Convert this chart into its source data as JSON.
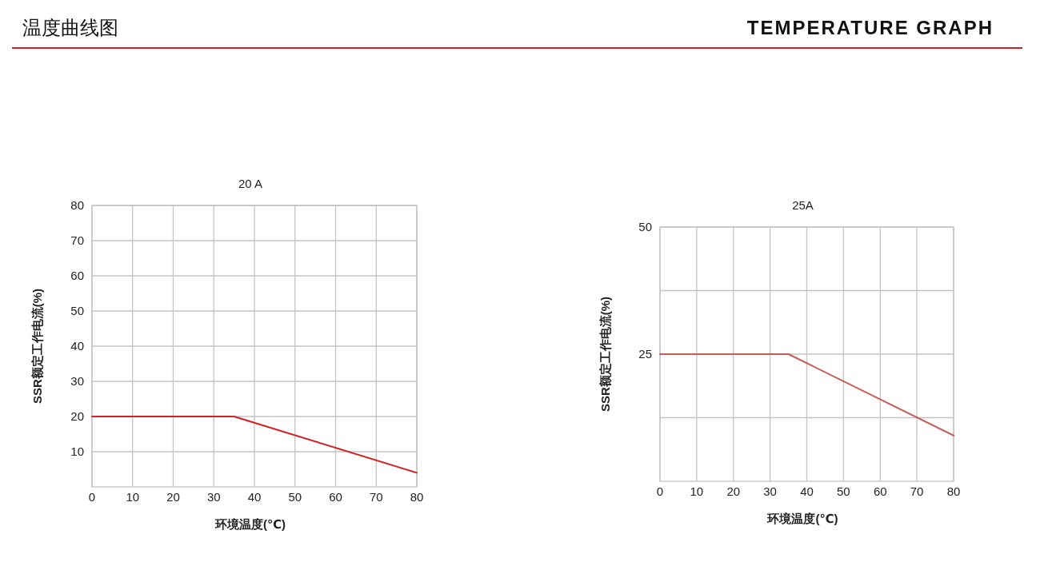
{
  "chart_data": [
    {
      "type": "other",
      "title": "温度曲线图",
      "subtitle": "TEMPERATURE GRAPH"
    },
    {
      "type": "line",
      "title": "20 A",
      "xlabel": "环境温度(℃)",
      "ylabel": "SSR额定工作电流(%)",
      "x": [
        0,
        35,
        80
      ],
      "xlim": [
        0,
        80
      ],
      "xticks": [
        0,
        10,
        20,
        30,
        40,
        50,
        60,
        70,
        80
      ],
      "ylim": [
        0,
        80
      ],
      "yticks": [
        10,
        20,
        30,
        40,
        50,
        60,
        70,
        80
      ],
      "grid": true,
      "series": [
        {
          "color": "#d42020",
          "values": [
            20,
            20,
            4
          ]
        }
      ]
    },
    {
      "type": "line",
      "title": "25A",
      "xlabel": "环境温度(℃)",
      "ylabel": "SSR额定工作电流(%)",
      "x": [
        0,
        35,
        80
      ],
      "xlim": [
        0,
        80
      ],
      "xticks": [
        0,
        10,
        20,
        30,
        40,
        50,
        60,
        70,
        80
      ],
      "ylim": [
        0,
        50
      ],
      "yticks": [
        {
          "value": 12.5,
          "label": null
        },
        25,
        {
          "value": 37.5,
          "label": null
        },
        50
      ],
      "grid": true,
      "series": [
        {
          "color": "#c85a5a",
          "values": [
            25,
            25,
            9
          ]
        }
      ]
    }
  ]
}
